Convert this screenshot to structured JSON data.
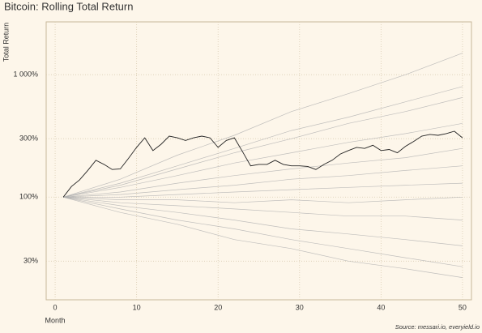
{
  "chart_data": {
    "type": "line",
    "title": "Bitcoin: Rolling Total Return",
    "y_label": "Total Return",
    "x_label": "Month",
    "source": "Source: messari.io, everyield.io",
    "log_y": true,
    "grid": true,
    "xlim": [
      -1.1,
      51.1
    ],
    "xticks": [
      0,
      10,
      20,
      30,
      40,
      50
    ],
    "ylim": [
      14.5,
      2700
    ],
    "yticks": [
      {
        "value": 30,
        "label": "30%"
      },
      {
        "value": 100,
        "label": "100%"
      },
      {
        "value": 300,
        "label": "300%"
      },
      {
        "value": 1000,
        "label": "1 000%"
      }
    ],
    "background_color": "#b0b0b0",
    "background_x": [
      1,
      8,
      15,
      22,
      29,
      36,
      43,
      50
    ],
    "background_series": [
      {
        "values": [
          100,
          140,
          220,
          320,
          500,
          700,
          1000,
          1500
        ]
      },
      {
        "values": [
          100,
          130,
          180,
          250,
          350,
          450,
          600,
          800
        ]
      },
      {
        "values": [
          100,
          120,
          150,
          190,
          230,
          280,
          330,
          400
        ]
      },
      {
        "values": [
          100,
          110,
          130,
          150,
          170,
          190,
          210,
          250
        ]
      },
      {
        "values": [
          100,
          105,
          115,
          125,
          140,
          150,
          165,
          180
        ]
      },
      {
        "values": [
          100,
          100,
          105,
          110,
          115,
          120,
          125,
          130
        ]
      },
      {
        "values": [
          100,
          95,
          95,
          90,
          95,
          90,
          95,
          100
        ]
      },
      {
        "values": [
          100,
          90,
          85,
          80,
          75,
          70,
          70,
          65
        ]
      },
      {
        "values": [
          100,
          85,
          75,
          65,
          55,
          50,
          45,
          40
        ]
      },
      {
        "values": [
          100,
          80,
          65,
          55,
          45,
          38,
          32,
          27
        ]
      },
      {
        "values": [
          100,
          75,
          60,
          45,
          38,
          30,
          26,
          22
        ]
      },
      {
        "values": [
          100,
          125,
          170,
          230,
          300,
          400,
          500,
          650
        ]
      }
    ],
    "x": [
      1,
      2,
      3,
      4,
      5,
      6,
      7,
      8,
      9,
      10,
      11,
      12,
      13,
      14,
      15,
      16,
      17,
      18,
      19,
      20,
      21,
      22,
      23,
      24,
      25,
      26,
      27,
      28,
      29,
      30,
      31,
      32,
      33,
      34,
      35,
      36,
      37,
      38,
      39,
      40,
      41,
      42,
      43,
      44,
      45,
      46,
      47,
      48,
      49,
      50
    ],
    "highlight": {
      "color": "#222222",
      "values": [
        100,
        122,
        138,
        165,
        200,
        185,
        168,
        170,
        207,
        255,
        305,
        240,
        270,
        315,
        305,
        290,
        305,
        315,
        305,
        255,
        290,
        305,
        235,
        180,
        185,
        185,
        200,
        185,
        180,
        180,
        178,
        168,
        185,
        200,
        225,
        240,
        255,
        250,
        265,
        240,
        245,
        230,
        260,
        285,
        315,
        325,
        320,
        330,
        345,
        305
      ]
    }
  }
}
